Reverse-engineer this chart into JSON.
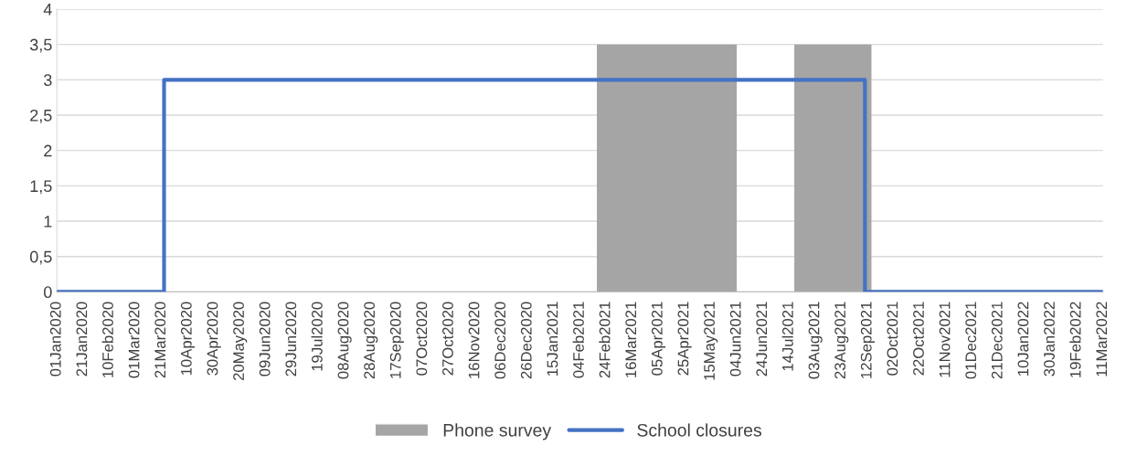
{
  "chart_data": {
    "type": "step",
    "legend": "bottom",
    "grid": "y",
    "xlim": [
      "2020-01-01",
      "2022-03-11"
    ],
    "ylim": [
      0,
      4
    ],
    "yticks": [
      0,
      {
        "value": 0.5,
        "label": "0,5"
      },
      1,
      {
        "value": 1.5,
        "label": "1,5"
      },
      2,
      {
        "value": 2.5,
        "label": "2,5"
      },
      3,
      {
        "value": 3.5,
        "label": "3,5"
      },
      4
    ],
    "xticks": [
      {
        "value": "2020-01-01",
        "label": "01Jan2020"
      },
      {
        "value": "2020-01-21",
        "label": "21Jan2020"
      },
      {
        "value": "2020-02-10",
        "label": "10Feb2020"
      },
      {
        "value": "2020-03-01",
        "label": "01Mar2020"
      },
      {
        "value": "2020-03-21",
        "label": "21Mar2020"
      },
      {
        "value": "2020-04-10",
        "label": "10Apr2020"
      },
      {
        "value": "2020-04-30",
        "label": "30Apr2020"
      },
      {
        "value": "2020-05-20",
        "label": "20May2020"
      },
      {
        "value": "2020-06-09",
        "label": "09Jun2020"
      },
      {
        "value": "2020-06-29",
        "label": "29Jun2020"
      },
      {
        "value": "2020-07-19",
        "label": "19Jul2020"
      },
      {
        "value": "2020-08-08",
        "label": "08Aug2020"
      },
      {
        "value": "2020-08-28",
        "label": "28Aug2020"
      },
      {
        "value": "2020-09-17",
        "label": "17Sep2020"
      },
      {
        "value": "2020-10-07",
        "label": "07Oct2020"
      },
      {
        "value": "2020-10-27",
        "label": "27Oct2020"
      },
      {
        "value": "2020-11-16",
        "label": "16Nov2020"
      },
      {
        "value": "2020-12-06",
        "label": "06Dec2020"
      },
      {
        "value": "2020-12-26",
        "label": "26Dec2020"
      },
      {
        "value": "2021-01-15",
        "label": "15Jan2021"
      },
      {
        "value": "2021-02-04",
        "label": "04Feb2021"
      },
      {
        "value": "2021-02-24",
        "label": "24Feb2021"
      },
      {
        "value": "2021-03-16",
        "label": "16Mar2021"
      },
      {
        "value": "2021-04-05",
        "label": "05Apr2021"
      },
      {
        "value": "2021-04-25",
        "label": "25Apr2021"
      },
      {
        "value": "2021-05-15",
        "label": "15May2021"
      },
      {
        "value": "2021-06-04",
        "label": "04Jun2021"
      },
      {
        "value": "2021-06-24",
        "label": "24Jun2021"
      },
      {
        "value": "2021-07-14",
        "label": "14Jul2021"
      },
      {
        "value": "2021-08-03",
        "label": "03Aug2021"
      },
      {
        "value": "2021-08-23",
        "label": "23Aug2021"
      },
      {
        "value": "2021-09-12",
        "label": "12Sep2021"
      },
      {
        "value": "2021-10-02",
        "label": "02Oct2021"
      },
      {
        "value": "2021-10-22",
        "label": "22Oct2021"
      },
      {
        "value": "2021-11-11",
        "label": "11Nov2021"
      },
      {
        "value": "2021-12-01",
        "label": "01Dec2021"
      },
      {
        "value": "2021-12-21",
        "label": "21Dec2021"
      },
      {
        "value": "2022-01-10",
        "label": "10Jan2022"
      },
      {
        "value": "2022-01-30",
        "label": "30Jan2022"
      },
      {
        "value": "2022-02-19",
        "label": "19Feb2022"
      },
      {
        "value": "2022-03-11",
        "label": "11Mar2022"
      }
    ],
    "series": [
      {
        "name": "Phone survey",
        "type": "area",
        "color": "#a5a5a5",
        "x": [
          "2021-02-17",
          "2021-02-17",
          "2021-06-04",
          "2021-06-04",
          "2021-07-18",
          "2021-07-18",
          "2021-09-15",
          "2021-09-15"
        ],
        "values": [
          0,
          3.5,
          3.5,
          0,
          0,
          3.5,
          3.5,
          0
        ]
      },
      {
        "name": "School closures",
        "color": "#4472c4",
        "x": [
          "2020-01-01",
          "2020-03-23",
          "2021-09-10",
          "2022-03-11"
        ],
        "values": [
          0,
          3,
          0,
          0
        ]
      }
    ]
  }
}
